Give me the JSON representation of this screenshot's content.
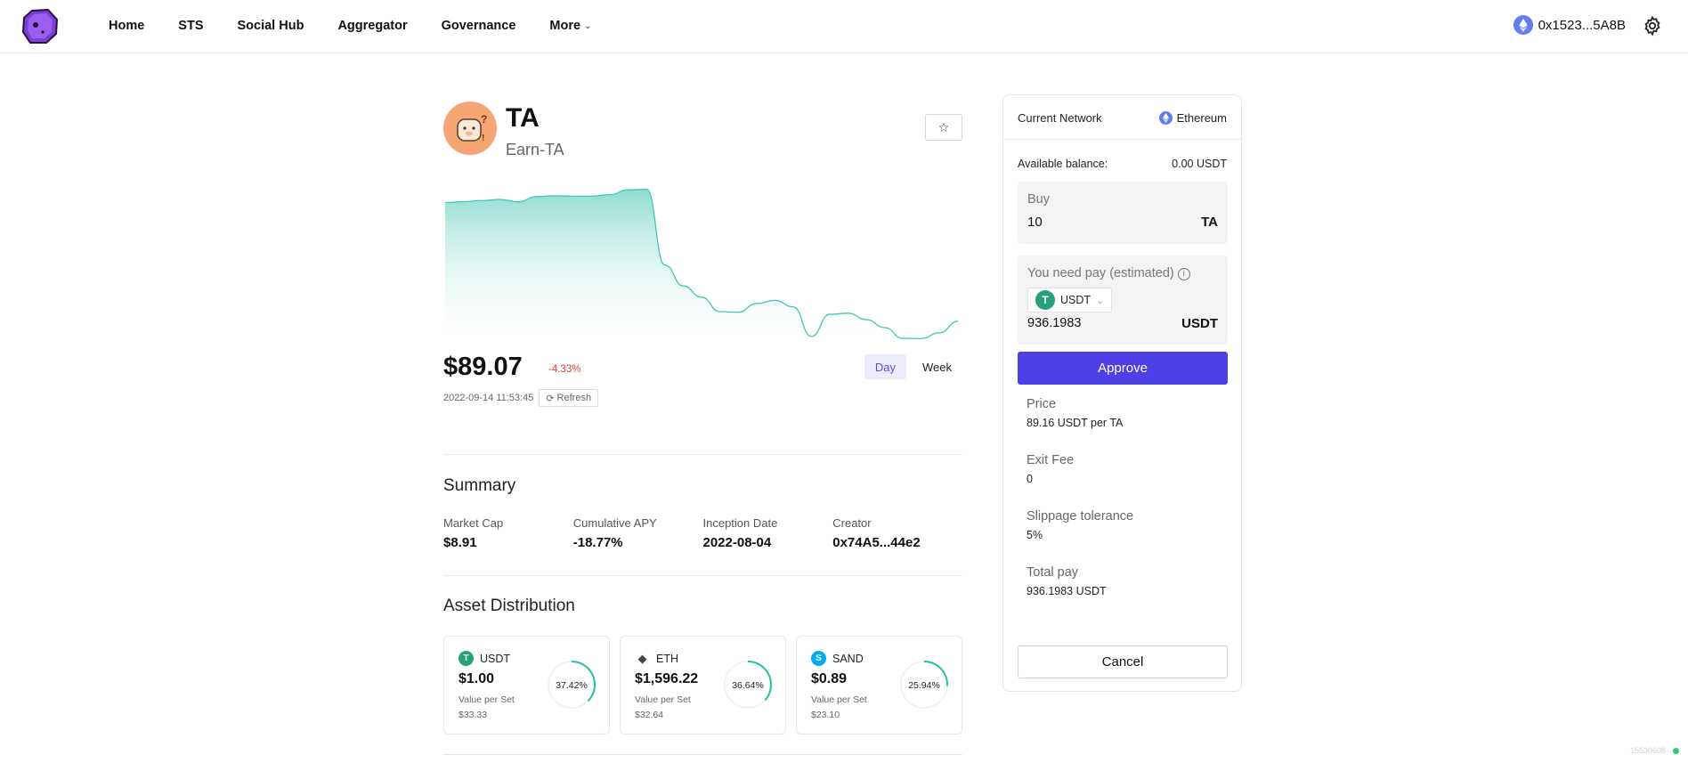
{
  "header": {
    "nav": [
      {
        "label": "Home"
      },
      {
        "label": "STS"
      },
      {
        "label": "Social Hub"
      },
      {
        "label": "Aggregator"
      },
      {
        "label": "Governance"
      },
      {
        "label": "More",
        "has_dropdown": true
      }
    ],
    "wallet_address": "0x1523...5A8B",
    "wallet_icon": "ethereum-icon",
    "settings_icon": "gear-icon"
  },
  "token": {
    "symbol": "TA",
    "name": "Earn-TA",
    "price": "$89.07",
    "change": "-4.33%",
    "timestamp": "2022-09-14 11:53:45",
    "refresh_label": "Refresh",
    "range_tabs": [
      {
        "label": "Day",
        "active": true
      },
      {
        "label": "Week",
        "active": false
      }
    ]
  },
  "chart_data": {
    "type": "area",
    "title": "",
    "xlabel": "",
    "ylabel": "",
    "grid": false,
    "y": [
      88,
      88.6,
      89.3,
      90,
      88.5,
      91.8,
      92.3,
      92,
      92,
      93,
      96,
      96.3,
      49,
      36,
      29,
      20,
      19.6,
      25,
      27,
      23,
      4.5,
      18.3,
      19,
      15,
      10,
      3.3,
      3.2,
      6.8,
      14
    ],
    "color": "#3cc8b4",
    "fill_top": "#8fdccf",
    "fill_bottom": "#ffffff"
  },
  "summary": {
    "title": "Summary",
    "items": [
      {
        "label": "Market Cap",
        "value": "$8.91"
      },
      {
        "label": "Cumulative APY",
        "value": "-18.77%"
      },
      {
        "label": "Inception Date",
        "value": "2022-08-04"
      },
      {
        "label": "Creator",
        "value": "0x74A5...44e2"
      }
    ]
  },
  "assets": {
    "title": "Asset Distribution",
    "items": [
      {
        "symbol": "USDT",
        "icon_char": "T",
        "color": "#26a17b",
        "price": "$1.00",
        "value_label": "Value per Set",
        "value": "$33.33",
        "percent": "37.42%",
        "fraction": 0.3742
      },
      {
        "symbol": "ETH",
        "icon_char": "◆",
        "color": "#444444",
        "price": "$1,596.22",
        "value_label": "Value per Set",
        "value": "$32.64",
        "percent": "36.64%",
        "fraction": 0.3664
      },
      {
        "symbol": "SAND",
        "icon_char": "S",
        "color": "#00adef",
        "price": "$0.89",
        "value_label": "Value per Set",
        "value": "$23.10",
        "percent": "25.94%",
        "fraction": 0.2594
      }
    ]
  },
  "trade": {
    "network_label": "Current Network",
    "network_value": "Ethereum",
    "balance_label": "Available balance:",
    "balance_value": "0.00 USDT",
    "buy_label": "Buy",
    "buy_value": "10",
    "buy_unit": "TA",
    "pay_label": "You need pay (estimated)",
    "pay_token": "USDT",
    "pay_amount": "936.1983",
    "pay_unit": "USDT",
    "approve_label": "Approve",
    "details": [
      {
        "label": "Price",
        "value": "89.16 USDT per TA"
      },
      {
        "label": "Exit Fee",
        "value": "0"
      },
      {
        "label": "Slippage tolerance",
        "value": "5%"
      },
      {
        "label": "Total pay",
        "value": "936.1983 USDT"
      }
    ],
    "cancel_label": "Cancel"
  },
  "status": {
    "text": "15530608"
  }
}
